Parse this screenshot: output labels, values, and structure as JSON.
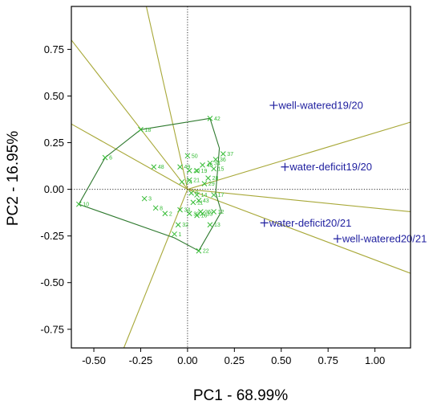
{
  "chart_data": {
    "type": "scatter",
    "subtype": "pca-biplot",
    "title": "",
    "xlabel": "PC1 - 68.99%",
    "ylabel": "PC2 - 16.95%",
    "xlim": [
      -0.62,
      1.19
    ],
    "ylim": [
      -0.85,
      0.98
    ],
    "xticks": [
      -0.5,
      -0.25,
      0.0,
      0.25,
      0.5,
      0.75,
      1.0
    ],
    "xtick_labels": [
      "-0.50",
      "-0.25",
      "0.00",
      "0.25",
      "0.50",
      "0.75",
      "1.00"
    ],
    "yticks": [
      0.75,
      0.5,
      0.25,
      0.0,
      -0.25,
      -0.5,
      -0.75
    ],
    "ytick_labels": [
      "0.75",
      "0.50",
      "0.25",
      "0.00",
      "-0.25",
      "-0.50",
      "-0.75"
    ],
    "grid": false,
    "zero_lines": true,
    "colors": {
      "variables": "#2121a0",
      "observations": "#33bb33",
      "hull": "#2f7a2f",
      "rays": "#a8a838",
      "frame": "#000000",
      "zero_line": "#333333"
    },
    "variables": [
      {
        "name": "well-watered19/20",
        "x": 0.46,
        "y": 0.45
      },
      {
        "name": "water-deficit19/20",
        "x": 0.52,
        "y": 0.12
      },
      {
        "name": "water-deficit20/21",
        "x": 0.41,
        "y": -0.18
      },
      {
        "name": "well-watered20/21",
        "x": 0.8,
        "y": -0.265
      }
    ],
    "rays": [
      {
        "x": -0.62,
        "y": 0.8
      },
      {
        "x": -0.22,
        "y": 0.98
      },
      {
        "x": -0.62,
        "y": 0.35
      },
      {
        "x": 1.19,
        "y": 0.36
      },
      {
        "x": 1.19,
        "y": -0.12
      },
      {
        "x": 1.19,
        "y": -0.45
      },
      {
        "x": -0.34,
        "y": -0.85
      }
    ],
    "hull": [
      [
        -0.58,
        -0.08
      ],
      [
        -0.44,
        0.17
      ],
      [
        -0.25,
        0.32
      ],
      [
        0.12,
        0.38
      ],
      [
        0.17,
        0.22
      ],
      [
        0.15,
        -0.02
      ],
      [
        0.18,
        -0.12
      ],
      [
        0.06,
        -0.33
      ],
      [
        -0.07,
        -0.26
      ]
    ],
    "observations": [
      {
        "label": "42",
        "x": 0.12,
        "y": 0.38
      },
      {
        "label": "18",
        "x": -0.25,
        "y": 0.32
      },
      {
        "label": "6",
        "x": -0.44,
        "y": 0.17
      },
      {
        "label": "48",
        "x": -0.18,
        "y": 0.12
      },
      {
        "label": "50",
        "x": 0.0,
        "y": 0.18
      },
      {
        "label": "37",
        "x": 0.19,
        "y": 0.19
      },
      {
        "label": "36",
        "x": 0.15,
        "y": 0.16
      },
      {
        "label": "34",
        "x": 0.12,
        "y": 0.14
      },
      {
        "label": "15",
        "x": 0.14,
        "y": 0.11
      },
      {
        "label": "49",
        "x": -0.04,
        "y": 0.12
      },
      {
        "label": "46",
        "x": 0.08,
        "y": 0.13
      },
      {
        "label": "19",
        "x": 0.05,
        "y": 0.1
      },
      {
        "label": "20",
        "x": 0.01,
        "y": 0.1
      },
      {
        "label": "21",
        "x": 0.01,
        "y": 0.05
      },
      {
        "label": "24",
        "x": -0.03,
        "y": 0.04
      },
      {
        "label": "28",
        "x": 0.11,
        "y": 0.06
      },
      {
        "label": "29",
        "x": 0.09,
        "y": 0.03
      },
      {
        "label": "10",
        "x": -0.58,
        "y": -0.08
      },
      {
        "label": "3",
        "x": -0.23,
        "y": -0.05
      },
      {
        "label": "8",
        "x": -0.17,
        "y": -0.1
      },
      {
        "label": "2",
        "x": -0.12,
        "y": -0.13
      },
      {
        "label": "34",
        "x": -0.04,
        "y": -0.11
      },
      {
        "label": "32",
        "x": -0.05,
        "y": -0.19
      },
      {
        "label": "1",
        "x": -0.07,
        "y": -0.24
      },
      {
        "label": "30",
        "x": 0.01,
        "y": -0.13
      },
      {
        "label": "11",
        "x": 0.03,
        "y": -0.07
      },
      {
        "label": "14",
        "x": 0.05,
        "y": -0.03
      },
      {
        "label": "17",
        "x": 0.14,
        "y": -0.03
      },
      {
        "label": "12",
        "x": 0.14,
        "y": -0.12
      },
      {
        "label": "13",
        "x": 0.12,
        "y": -0.19
      },
      {
        "label": "33",
        "x": 0.08,
        "y": -0.13
      },
      {
        "label": "26",
        "x": 0.07,
        "y": -0.12
      },
      {
        "label": "16",
        "x": 0.05,
        "y": -0.14
      },
      {
        "label": "22",
        "x": 0.06,
        "y": -0.33
      },
      {
        "label": "43",
        "x": 0.06,
        "y": -0.06
      },
      {
        "label": "9",
        "x": 0.02,
        "y": -0.02
      }
    ]
  }
}
